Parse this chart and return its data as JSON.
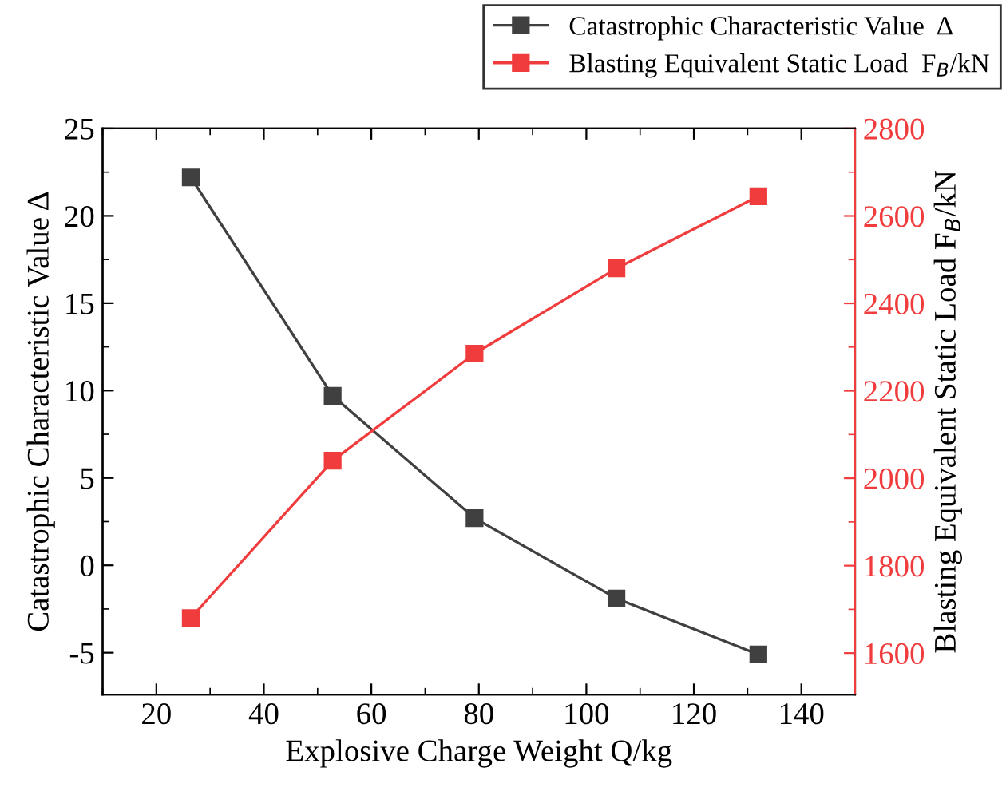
{
  "chart_data": {
    "type": "line",
    "x": [
      26.4,
      52.8,
      79.2,
      105.6,
      132
    ],
    "series": [
      {
        "name": "Catastrophic Characteristic Value  Δ",
        "color": "#404040",
        "values": [
          22.2,
          9.7,
          2.7,
          -1.9,
          -5.1
        ]
      },
      {
        "name": "Blasting Equivalent Static Load  F$_{B}$/kN",
        "color": "#f03c3c",
        "axis": "y2",
        "values": [
          1680,
          2040,
          2285,
          2480,
          2645
        ]
      }
    ],
    "xlabel": "Explosive Charge Weight Q/kg",
    "ylabel": "Catastrophic Characteristic Value Δ",
    "y2label": "Blasting Equivalent Static Load F$_{B}$/kN",
    "xlim": [
      10,
      150
    ],
    "xticks": [
      20,
      40,
      60,
      80,
      100,
      120,
      140
    ],
    "ylim": [
      -7.4,
      25
    ],
    "yticks": [
      -5,
      0,
      5,
      10,
      15,
      20,
      25
    ],
    "y2lim": [
      1505,
      2800
    ],
    "y2ticks": [
      1600,
      1800,
      2000,
      2200,
      2400,
      2600,
      2800
    ],
    "marker": "square",
    "line_style": "solid",
    "legend": "top right",
    "grid": false
  }
}
